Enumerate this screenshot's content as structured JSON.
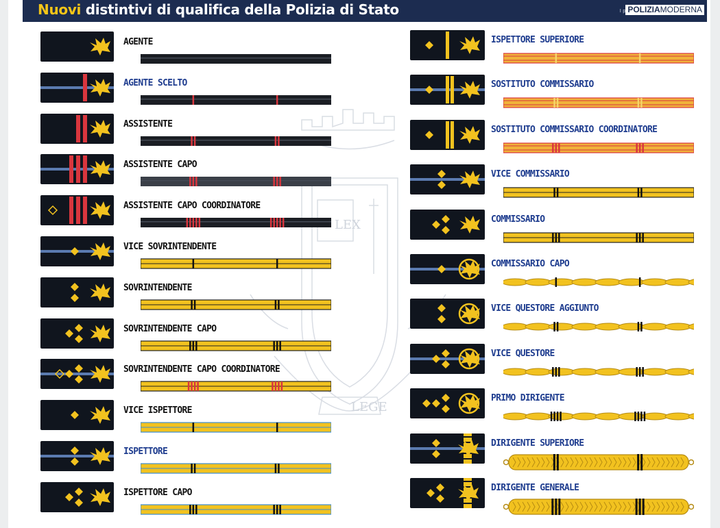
{
  "header": {
    "title_prefix": "Nuovi",
    "title_rest": " distintivi di qualifica della Polizia di Stato",
    "poster_note": "I poster di",
    "brand_bold": "POLIZIA",
    "brand_light": "MODERNA"
  },
  "background": {
    "motto": "LEGE",
    "tablet_text": "LEX"
  },
  "colors": {
    "banner": "#1c2c50",
    "accent_yellow": "#f5c518",
    "patch": "#10151e",
    "stripe_red": "#d9363e",
    "gold": "#f2c21f",
    "blue_line": "#5b7bb0"
  },
  "left_ranks": [
    {
      "label": "AGENTE",
      "label_color": "black",
      "stripe": false,
      "bars": 0,
      "marks": 0,
      "bar": "black",
      "ticks": 0,
      "eagle": "plain"
    },
    {
      "label": "AGENTE SCELTO",
      "label_color": "blue",
      "stripe": true,
      "bars": 1,
      "marks": 0,
      "bar": "black",
      "ticks": 1,
      "eagle": "plain"
    },
    {
      "label": "ASSISTENTE",
      "label_color": "black",
      "stripe": false,
      "bars": 2,
      "marks": 0,
      "bar": "black",
      "ticks": 2,
      "eagle": "plain"
    },
    {
      "label": "ASSISTENTE CAPO",
      "label_color": "black",
      "stripe": true,
      "bars": 3,
      "marks": 0,
      "bar": "grey",
      "ticks": 3,
      "eagle": "plain"
    },
    {
      "label": "ASSISTENTE CAPO COORDINATORE",
      "label_color": "black",
      "stripe": false,
      "bars": 3,
      "marks": 1,
      "bar": "black",
      "ticks": 5,
      "eagle": "plain"
    },
    {
      "label": "VICE SOVRINTENDENTE",
      "label_color": "black",
      "stripe": true,
      "bars": 0,
      "marks": 1,
      "bar": "gold",
      "ticks": 1,
      "eagle": "plain"
    },
    {
      "label": "SOVRINTENDENTE",
      "label_color": "black",
      "stripe": false,
      "bars": 0,
      "marks": 2,
      "bar": "gold",
      "ticks": 2,
      "eagle": "plain"
    },
    {
      "label": "SOVRINTENDENTE CAPO",
      "label_color": "black",
      "stripe": false,
      "bars": 0,
      "marks": 3,
      "bar": "gold",
      "ticks": 3,
      "eagle": "plain"
    },
    {
      "label": "SOVRINTENDENTE CAPO COORDINATORE",
      "label_color": "black",
      "stripe": true,
      "bars": 0,
      "marks": 4,
      "bar": "gold",
      "ticks": 4,
      "eagle": "plain",
      "red_ticks": true
    },
    {
      "label": "VICE  ISPETTORE",
      "label_color": "black",
      "stripe": false,
      "bars": 0,
      "marks": 1,
      "bar": "gold-blue",
      "ticks": 1,
      "eagle": "plain"
    },
    {
      "label": "ISPETTORE",
      "label_color": "blue",
      "stripe": true,
      "bars": 0,
      "marks": 2,
      "bar": "gold-blue",
      "ticks": 2,
      "eagle": "plain"
    },
    {
      "label": "ISPETTORE CAPO",
      "label_color": "black",
      "stripe": false,
      "bars": 0,
      "marks": 3,
      "bar": "gold-blue",
      "ticks": 3,
      "eagle": "plain"
    }
  ],
  "right_ranks": [
    {
      "label": "ISPETTORE SUPERIORE",
      "stripe": false,
      "marks": 1,
      "yellow_bar": 1,
      "bar": "red-gold",
      "ticks": 1,
      "eagle": "plain"
    },
    {
      "label": "SOSTITUTO COMMISSARIO",
      "stripe": true,
      "marks": 1,
      "yellow_bar": 2,
      "bar": "red-gold",
      "ticks": 2,
      "eagle": "plain"
    },
    {
      "label": "SOSTITUTO COMMISSARIO COORDINATORE",
      "stripe": false,
      "marks": 1,
      "yellow_bar": 2,
      "bar": "red-gold",
      "ticks": 3,
      "eagle": "plain",
      "red_ticks": true
    },
    {
      "label": "VICE COMMISSARIO",
      "stripe": true,
      "marks": 2,
      "yellow_bar": 0,
      "bar": "gold",
      "ticks": 2,
      "eagle": "plain"
    },
    {
      "label": "COMMISSARIO",
      "stripe": false,
      "marks": 3,
      "yellow_bar": 0,
      "bar": "gold",
      "ticks": 3,
      "eagle": "plain"
    },
    {
      "label": "COMMISSARIO CAPO",
      "stripe": true,
      "marks": 1,
      "yellow_bar": 0,
      "bar": "braid",
      "ticks": 1,
      "eagle": "wreath"
    },
    {
      "label": "VICE QUESTORE AGGIUNTO",
      "stripe": false,
      "marks": 2,
      "yellow_bar": 0,
      "bar": "braid",
      "ticks": 2,
      "eagle": "wreath"
    },
    {
      "label": "VICE QUESTORE",
      "stripe": true,
      "marks": 3,
      "yellow_bar": 0,
      "bar": "braid",
      "ticks": 3,
      "eagle": "wreath"
    },
    {
      "label": "PRIMO DIRIGENTE",
      "stripe": false,
      "marks": 4,
      "yellow_bar": 0,
      "bar": "braid",
      "ticks": 4,
      "eagle": "wreath"
    },
    {
      "label": "DIRIGENTE SUPERIORE",
      "stripe": true,
      "marks": 2,
      "yellow_bar": 0,
      "bar": "cord",
      "ticks": 2,
      "eagle": "tower"
    },
    {
      "label": "DIRIGENTE GENERALE",
      "stripe": false,
      "marks": 3,
      "yellow_bar": 0,
      "bar": "cord",
      "ticks": 3,
      "eagle": "tower"
    }
  ]
}
